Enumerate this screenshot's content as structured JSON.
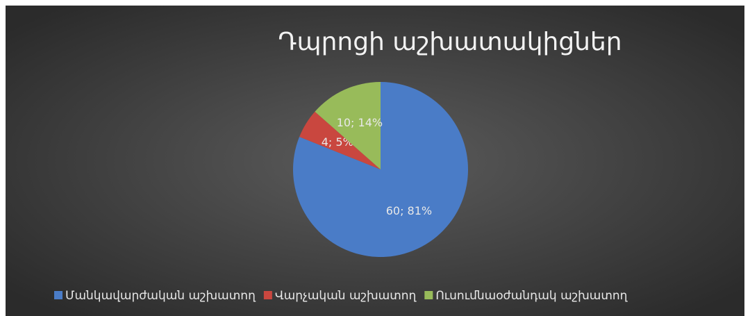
{
  "chart_data": {
    "type": "pie",
    "title": "Դպրոցի աշխատակիցներ",
    "categories": [
      "Մանկավարժական աշխատող",
      "Վարչական աշխատող",
      "Ուսումնաօժանդակ աշխատող"
    ],
    "values": [
      60,
      4,
      10
    ],
    "value_labels": [
      "60; 81%",
      "4; 5%",
      "10; 14%"
    ],
    "colors": [
      "#4a7cc7",
      "#c9473f",
      "#98bb5a"
    ],
    "legend": "bottom"
  }
}
